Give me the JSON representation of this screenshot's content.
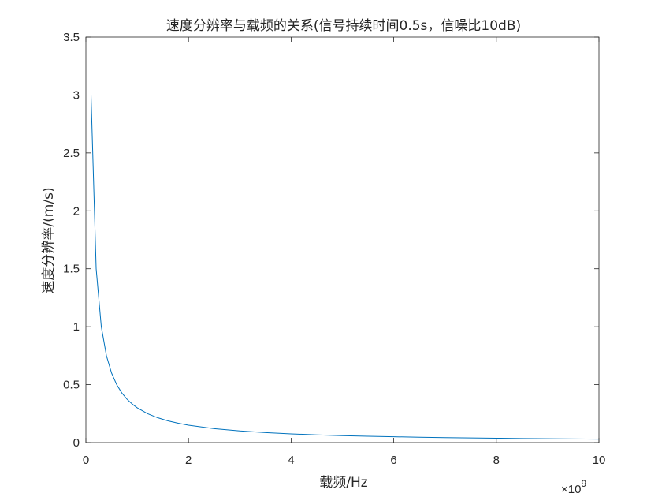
{
  "chart_data": {
    "type": "line",
    "title": "速度分辨率与载频的关系(信号持续时间0.5s，信噪比10dB)",
    "xlabel": "载频/Hz",
    "ylabel": "速度分辨率/(m/s)",
    "x_exponent_prefix": "×10",
    "x_exponent_power": "9",
    "xlim": [
      0,
      10
    ],
    "ylim": [
      0,
      3.5
    ],
    "xticks": [
      0,
      2,
      4,
      6,
      8,
      10
    ],
    "xtick_labels": [
      "0",
      "2",
      "4",
      "6",
      "8",
      "10"
    ],
    "yticks": [
      0,
      0.5,
      1,
      1.5,
      2,
      2.5,
      3,
      3.5
    ],
    "ytick_labels": [
      "0",
      "0.5",
      "1",
      "1.5",
      "2",
      "2.5",
      "3",
      "3.5"
    ],
    "grid": false,
    "line_color": "#0072BD",
    "series": [
      {
        "name": "速度分辨率",
        "x": [
          0.1,
          0.2,
          0.3,
          0.4,
          0.5,
          0.6,
          0.7,
          0.8,
          0.9,
          1.0,
          1.2,
          1.4,
          1.6,
          1.8,
          2.0,
          2.5,
          3.0,
          3.5,
          4.0,
          4.5,
          5.0,
          5.5,
          6.0,
          6.5,
          7.0,
          7.5,
          8.0,
          8.5,
          9.0,
          9.5,
          10.0
        ],
        "y": [
          3.0,
          1.5,
          1.0,
          0.75,
          0.6,
          0.5,
          0.4286,
          0.375,
          0.3333,
          0.3,
          0.25,
          0.2143,
          0.1875,
          0.1667,
          0.15,
          0.12,
          0.1,
          0.0857,
          0.075,
          0.0667,
          0.06,
          0.0545,
          0.05,
          0.0462,
          0.0429,
          0.04,
          0.0375,
          0.0353,
          0.0333,
          0.0316,
          0.03
        ]
      }
    ]
  }
}
